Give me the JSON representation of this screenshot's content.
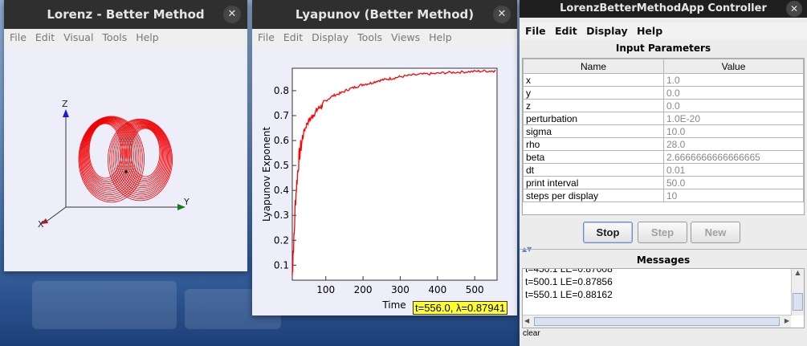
{
  "windows": {
    "visual": {
      "title": "Lorenz - Better Method",
      "menu": [
        "File",
        "Edit",
        "Visual",
        "Tools",
        "Help"
      ],
      "axes": {
        "x": "X",
        "y": "Y",
        "z": "Z"
      }
    },
    "plot": {
      "title": "Lyapunov (Better Method)",
      "menu": [
        "File",
        "Edit",
        "Display",
        "Tools",
        "Views",
        "Help"
      ],
      "tooltip": "t=556.0, λ=0.87941",
      "chart_data": {
        "type": "line",
        "xlabel": "Time",
        "ylabel": "Lyapunov Exponent",
        "xlim": [
          10,
          560
        ],
        "ylim": [
          0.04,
          0.89
        ],
        "xticks": [
          100,
          200,
          300,
          400,
          500
        ],
        "yticks": [
          0.1,
          0.2,
          0.3,
          0.4,
          0.5,
          0.6,
          0.7,
          0.8
        ],
        "series": [
          {
            "color": "#ff0000",
            "x": [
              10,
              12,
              15,
              18,
              22,
              26,
              30,
              35,
              40,
              45,
              50,
              60,
              70,
              80,
              90,
              100,
              120,
              140,
              160,
              180,
              200,
              220,
              240,
              260,
              280,
              300,
              330,
              360,
              390,
              420,
              450,
              480,
              510,
              540,
              556
            ],
            "y": [
              0.06,
              0.14,
              0.22,
              0.35,
              0.43,
              0.5,
              0.55,
              0.59,
              0.63,
              0.65,
              0.67,
              0.69,
              0.71,
              0.73,
              0.74,
              0.76,
              0.78,
              0.79,
              0.805,
              0.815,
              0.825,
              0.83,
              0.84,
              0.845,
              0.85,
              0.856,
              0.862,
              0.866,
              0.868,
              0.872,
              0.874,
              0.876,
              0.878,
              0.879,
              0.87941
            ]
          }
        ]
      }
    },
    "controller": {
      "title": "LorenzBetterMethodApp Controller",
      "menu": [
        "File",
        "Edit",
        "Display",
        "Help"
      ],
      "params_title": "Input Parameters",
      "columns": [
        "Name",
        "Value"
      ],
      "params": [
        {
          "name": "x",
          "value": "1.0"
        },
        {
          "name": "y",
          "value": "0.0"
        },
        {
          "name": "z",
          "value": "0.0"
        },
        {
          "name": "perturbation",
          "value": "1.0E-20"
        },
        {
          "name": "sigma",
          "value": "10.0"
        },
        {
          "name": "rho",
          "value": "28.0"
        },
        {
          "name": "beta",
          "value": "2.6666666666666665"
        },
        {
          "name": "dt",
          "value": "0.01"
        },
        {
          "name": "print interval",
          "value": "50.0"
        },
        {
          "name": "steps per display",
          "value": "10"
        }
      ],
      "buttons": {
        "stop": "Stop",
        "step": "Step",
        "new": "New"
      },
      "messages_title": "Messages",
      "messages": [
        "t=450.1 LE=0.87008",
        "t=500.1 LE=0.87856",
        "t=550.1 LE=0.88162"
      ],
      "clear": "clear",
      "close_glyph": "✕"
    }
  },
  "colors": {
    "trajectory": "#ee0000",
    "plot_line": "#ff0000",
    "tooltip": "#ffff2e"
  }
}
